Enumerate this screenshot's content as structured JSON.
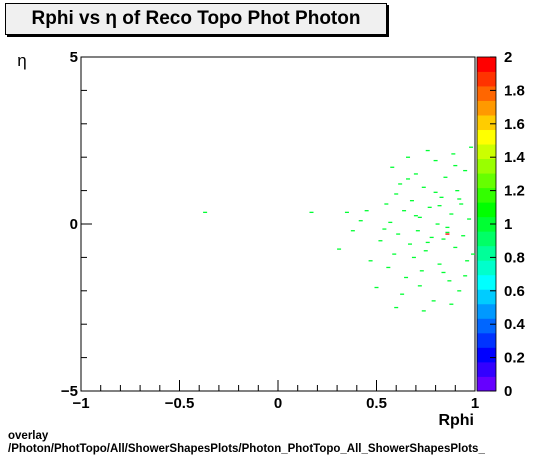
{
  "title": "Rphi vs  η of Reco Topo Phot Photon",
  "footer": {
    "line1": "overlay",
    "line2": "/Photon/PhotTopo/All/ShowerShapesPlots/Photon_PhotTopo_All_ShowerShapesPlots_"
  },
  "chart_data": {
    "type": "heatmap",
    "title": "Rphi vs  η of Reco Topo Phot Photon",
    "xlabel": "Rphi",
    "ylabel": "η",
    "xlim": [
      -1,
      1
    ],
    "ylim": [
      -5,
      5
    ],
    "x_ticks": [
      "−1",
      "−0.5",
      "0",
      "0.5",
      "1"
    ],
    "y_ticks": [
      "−5",
      "0",
      "5"
    ],
    "z_range": [
      0,
      2
    ],
    "z_ticks": [
      "0",
      "0.2",
      "0.4",
      "0.6",
      "0.8",
      "1",
      "1.2",
      "1.4",
      "1.6",
      "1.8",
      "2"
    ],
    "palette": [
      "#6600ff",
      "#3300ff",
      "#0000ff",
      "#0033ff",
      "#0066ff",
      "#0099ff",
      "#00ccff",
      "#00ffff",
      "#00ffcc",
      "#00ff99",
      "#00ff66",
      "#00ff33",
      "#00ff00",
      "#33ff00",
      "#66ff00",
      "#99ff00",
      "#ccff00",
      "#ffff00",
      "#ffcc00",
      "#ff9900",
      "#ff6600",
      "#ff3300",
      "#ff0000"
    ],
    "points": [
      [
        -0.37,
        0.35,
        1
      ],
      [
        0.17,
        0.35,
        1
      ],
      [
        0.31,
        -0.75,
        1
      ],
      [
        0.35,
        0.35,
        1
      ],
      [
        0.38,
        -0.2,
        1
      ],
      [
        0.42,
        0.1,
        1
      ],
      [
        0.45,
        0.4,
        1
      ],
      [
        0.47,
        -1.1,
        1
      ],
      [
        0.5,
        -1.9,
        1
      ],
      [
        0.52,
        -0.5,
        1
      ],
      [
        0.55,
        0.6,
        1
      ],
      [
        0.56,
        -1.3,
        1
      ],
      [
        0.57,
        0.05,
        1
      ],
      [
        0.58,
        1.7,
        1
      ],
      [
        0.59,
        -0.9,
        1
      ],
      [
        0.6,
        0.9,
        1
      ],
      [
        0.61,
        -0.3,
        1
      ],
      [
        0.62,
        1.2,
        1
      ],
      [
        0.63,
        -2.1,
        1
      ],
      [
        0.64,
        0.4,
        1
      ],
      [
        0.65,
        -1.6,
        1
      ],
      [
        0.66,
        2.0,
        1
      ],
      [
        0.67,
        -0.6,
        1
      ],
      [
        0.68,
        0.7,
        1
      ],
      [
        0.69,
        -1.0,
        1
      ],
      [
        0.7,
        1.5,
        1
      ],
      [
        0.71,
        -0.2,
        1
      ],
      [
        0.72,
        0.2,
        1
      ],
      [
        0.73,
        -1.4,
        1
      ],
      [
        0.74,
        1.1,
        1
      ],
      [
        0.75,
        -0.8,
        1
      ],
      [
        0.76,
        2.2,
        1
      ],
      [
        0.77,
        0.5,
        1
      ],
      [
        0.78,
        -0.4,
        1
      ],
      [
        0.79,
        -2.3,
        1
      ],
      [
        0.8,
        1.9,
        1
      ],
      [
        0.81,
        0.0,
        1
      ],
      [
        0.82,
        -1.2,
        1
      ],
      [
        0.83,
        0.8,
        1
      ],
      [
        0.84,
        -0.45,
        1
      ],
      [
        0.85,
        1.4,
        1
      ],
      [
        0.86,
        -0.1,
        1
      ],
      [
        0.87,
        -1.7,
        1
      ],
      [
        0.88,
        0.3,
        1
      ],
      [
        0.89,
        2.1,
        1
      ],
      [
        0.9,
        -0.7,
        1
      ],
      [
        0.91,
        1.0,
        1
      ],
      [
        0.92,
        -2.0,
        1
      ],
      [
        0.93,
        0.6,
        1
      ],
      [
        0.94,
        -0.35,
        1
      ],
      [
        0.95,
        1.6,
        1
      ],
      [
        0.96,
        -1.1,
        1
      ],
      [
        0.97,
        0.15,
        1
      ],
      [
        0.98,
        2.3,
        1
      ],
      [
        0.99,
        -0.9,
        1
      ],
      [
        0.54,
        -0.15,
        1
      ],
      [
        0.6,
        -2.5,
        1
      ],
      [
        0.74,
        -2.6,
        1
      ],
      [
        0.88,
        -2.4,
        1
      ],
      [
        0.66,
        1.35,
        1
      ],
      [
        0.72,
        -1.85,
        1
      ],
      [
        0.8,
        0.95,
        1
      ],
      [
        0.84,
        -1.45,
        1
      ],
      [
        0.9,
        1.75,
        1
      ],
      [
        0.95,
        -1.55,
        1
      ],
      [
        0.7,
        0.25,
        1
      ],
      [
        0.76,
        -0.55,
        1
      ],
      [
        0.82,
        0.55,
        1
      ],
      [
        0.86,
        -0.25,
        1
      ],
      [
        0.92,
        0.75,
        1
      ],
      [
        0.86,
        -0.3,
        2
      ]
    ]
  }
}
